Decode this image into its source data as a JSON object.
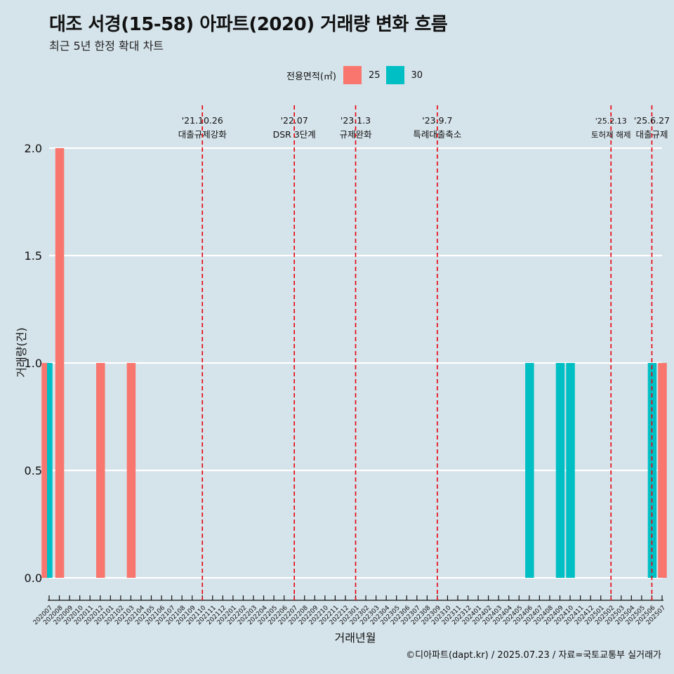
{
  "title": "대조 서경(15-58) 아파트(2020) 거래량 변화 흐름",
  "subtitle": "최근 5년 한정 확대 차트",
  "caption": "©디아파트(dapt.kr) / 2025.07.23 / 자료=국토교통부 실거래가",
  "legend": {
    "title": "전용면적(㎡)",
    "items": [
      {
        "label": "25",
        "color": "#f8766d"
      },
      {
        "label": "30",
        "color": "#00bfc4"
      }
    ]
  },
  "colors": {
    "background": "#d5e3ea",
    "grid": "#ffffff",
    "event_line": "#e8000b"
  },
  "chart_data": {
    "type": "bar",
    "xlabel": "거래년월",
    "ylabel": "거래량(건)",
    "ylim": [
      0,
      2
    ],
    "y_ticks": [
      "0.0",
      "0.5",
      "1.0",
      "1.5",
      "2.0"
    ],
    "grid": true,
    "legend_position": "top",
    "categories": [
      "202007",
      "202008",
      "202009",
      "202010",
      "202011",
      "202012",
      "202101",
      "202102",
      "202103",
      "202104",
      "202105",
      "202106",
      "202107",
      "202108",
      "202109",
      "202110",
      "202111",
      "202112",
      "202201",
      "202202",
      "202203",
      "202204",
      "202205",
      "202206",
      "202207",
      "202208",
      "202209",
      "202210",
      "202211",
      "202212",
      "202301",
      "202302",
      "202303",
      "202304",
      "202305",
      "202306",
      "202307",
      "202308",
      "202309",
      "202310",
      "202311",
      "202312",
      "202401",
      "202402",
      "202403",
      "202404",
      "202405",
      "202406",
      "202407",
      "202408",
      "202409",
      "202410",
      "202411",
      "202412",
      "202501",
      "202502",
      "202503",
      "202504",
      "202505",
      "202506",
      "202507"
    ],
    "series": [
      {
        "name": "25",
        "color": "#f8766d",
        "values": [
          1,
          2,
          0,
          0,
          0,
          1,
          0,
          0,
          1,
          0,
          0,
          0,
          0,
          0,
          0,
          0,
          0,
          0,
          0,
          0,
          0,
          0,
          0,
          0,
          0,
          0,
          0,
          0,
          0,
          0,
          0,
          0,
          0,
          0,
          0,
          0,
          0,
          0,
          0,
          0,
          0,
          0,
          0,
          0,
          0,
          0,
          0,
          0,
          0,
          0,
          0,
          0,
          0,
          0,
          0,
          0,
          0,
          0,
          0,
          0,
          1
        ]
      },
      {
        "name": "30",
        "color": "#00bfc4",
        "values": [
          1,
          0,
          0,
          0,
          0,
          0,
          0,
          0,
          0,
          0,
          0,
          0,
          0,
          0,
          0,
          0,
          0,
          0,
          0,
          0,
          0,
          0,
          0,
          0,
          0,
          0,
          0,
          0,
          0,
          0,
          0,
          0,
          0,
          0,
          0,
          0,
          0,
          0,
          0,
          0,
          0,
          0,
          0,
          0,
          0,
          0,
          0,
          1,
          0,
          0,
          1,
          1,
          0,
          0,
          0,
          0,
          0,
          0,
          0,
          1,
          0
        ]
      }
    ],
    "events": [
      {
        "date": "'21.10.26",
        "label": "대출규제강화",
        "category": "202110"
      },
      {
        "date": "'22.07",
        "label": "DSR 3단계",
        "category": "202207"
      },
      {
        "date": "'23.1.3",
        "label": "규제완화",
        "category": "202301"
      },
      {
        "date": "'23.9.7",
        "label": "특례대출축소",
        "category": "202309"
      },
      {
        "date": "'25.2.13",
        "label": "토허제 해제",
        "category": "202502"
      },
      {
        "date": "'25.6.27",
        "label": "대출규제",
        "category": "202506"
      }
    ]
  }
}
